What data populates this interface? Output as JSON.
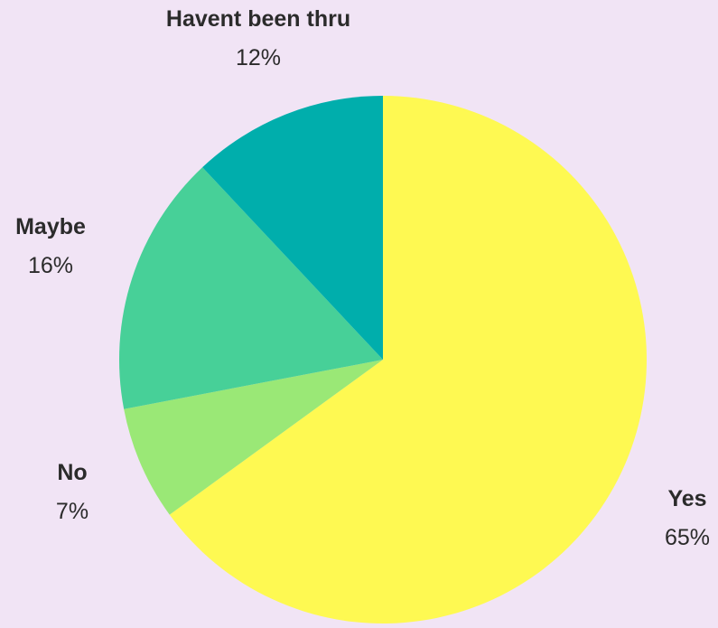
{
  "chart_data": {
    "type": "pie",
    "background": "#f1e4f5",
    "label_color": "#2b2b2b",
    "start": "12 o'clock",
    "direction": "clockwise",
    "slices": [
      {
        "name": "Yes",
        "value": 65,
        "percent_label": "65%",
        "color": "#fef952"
      },
      {
        "name": "No",
        "value": 7,
        "percent_label": "7%",
        "color": "#9ae876"
      },
      {
        "name": "Maybe",
        "value": 16,
        "percent_label": "16%",
        "color": "#47d098"
      },
      {
        "name": "Havent been thru",
        "value": 12,
        "percent_label": "12%",
        "color": "#00aeac"
      }
    ]
  }
}
